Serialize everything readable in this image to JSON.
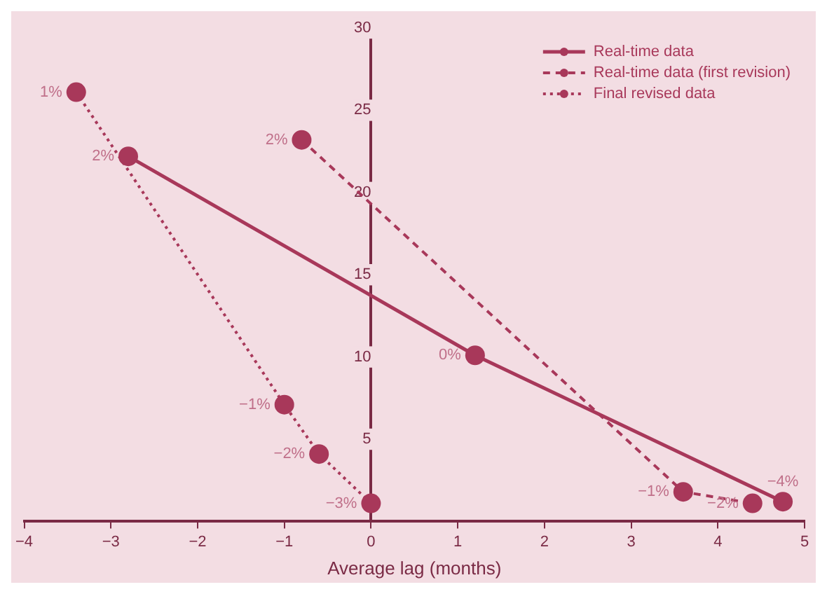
{
  "chart_data": {
    "type": "line",
    "xlabel": "Average lag (months)",
    "xlim": [
      -4,
      5
    ],
    "xticks": [
      -4,
      -3,
      -2,
      -1,
      0,
      1,
      2,
      3,
      4,
      5
    ],
    "ylim": [
      0,
      30
    ],
    "yticks": [
      5,
      10,
      15,
      20,
      25,
      30
    ],
    "grid": false,
    "legend": "top right",
    "marker": "circle",
    "series": [
      {
        "name": "Real-time data",
        "color": "#a8385a",
        "line_style": "solid",
        "x": [
          -2.8,
          1.2,
          4.75
        ],
        "values": [
          22.2,
          10.1,
          1.2
        ]
      },
      {
        "name": "Real-time data (first revision)",
        "color": "#a8385a",
        "line_style": "dashed",
        "x": [
          -0.8,
          3.6,
          4.4
        ],
        "values": [
          23.2,
          1.8,
          1.1
        ]
      },
      {
        "name": "Final revised data",
        "color": "#a8385a",
        "line_style": "dotted",
        "x": [
          -3.4,
          -1.0,
          -0.6,
          0
        ],
        "values": [
          26.1,
          7.1,
          4.1,
          1.1
        ]
      }
    ],
    "annotations": [
      {
        "text": "2%",
        "x": -2.8,
        "y": 22.2
      },
      {
        "text": "0%",
        "x": 1.2,
        "y": 10.1
      },
      {
        "text": "−4%",
        "x": 4.75,
        "y": 1.2
      },
      {
        "text": "2%",
        "x": -0.8,
        "y": 23.2
      },
      {
        "text": "−1%",
        "x": 3.6,
        "y": 1.8
      },
      {
        "text": "−2%",
        "x": 4.4,
        "y": 1.1
      },
      {
        "text": "1%",
        "x": -3.4,
        "y": 26.1
      },
      {
        "text": "−1%",
        "x": -1.0,
        "y": 7.1
      },
      {
        "text": "−2%",
        "x": -0.6,
        "y": 4.1
      },
      {
        "text": "−3%",
        "x": 0,
        "y": 1.1
      }
    ]
  }
}
